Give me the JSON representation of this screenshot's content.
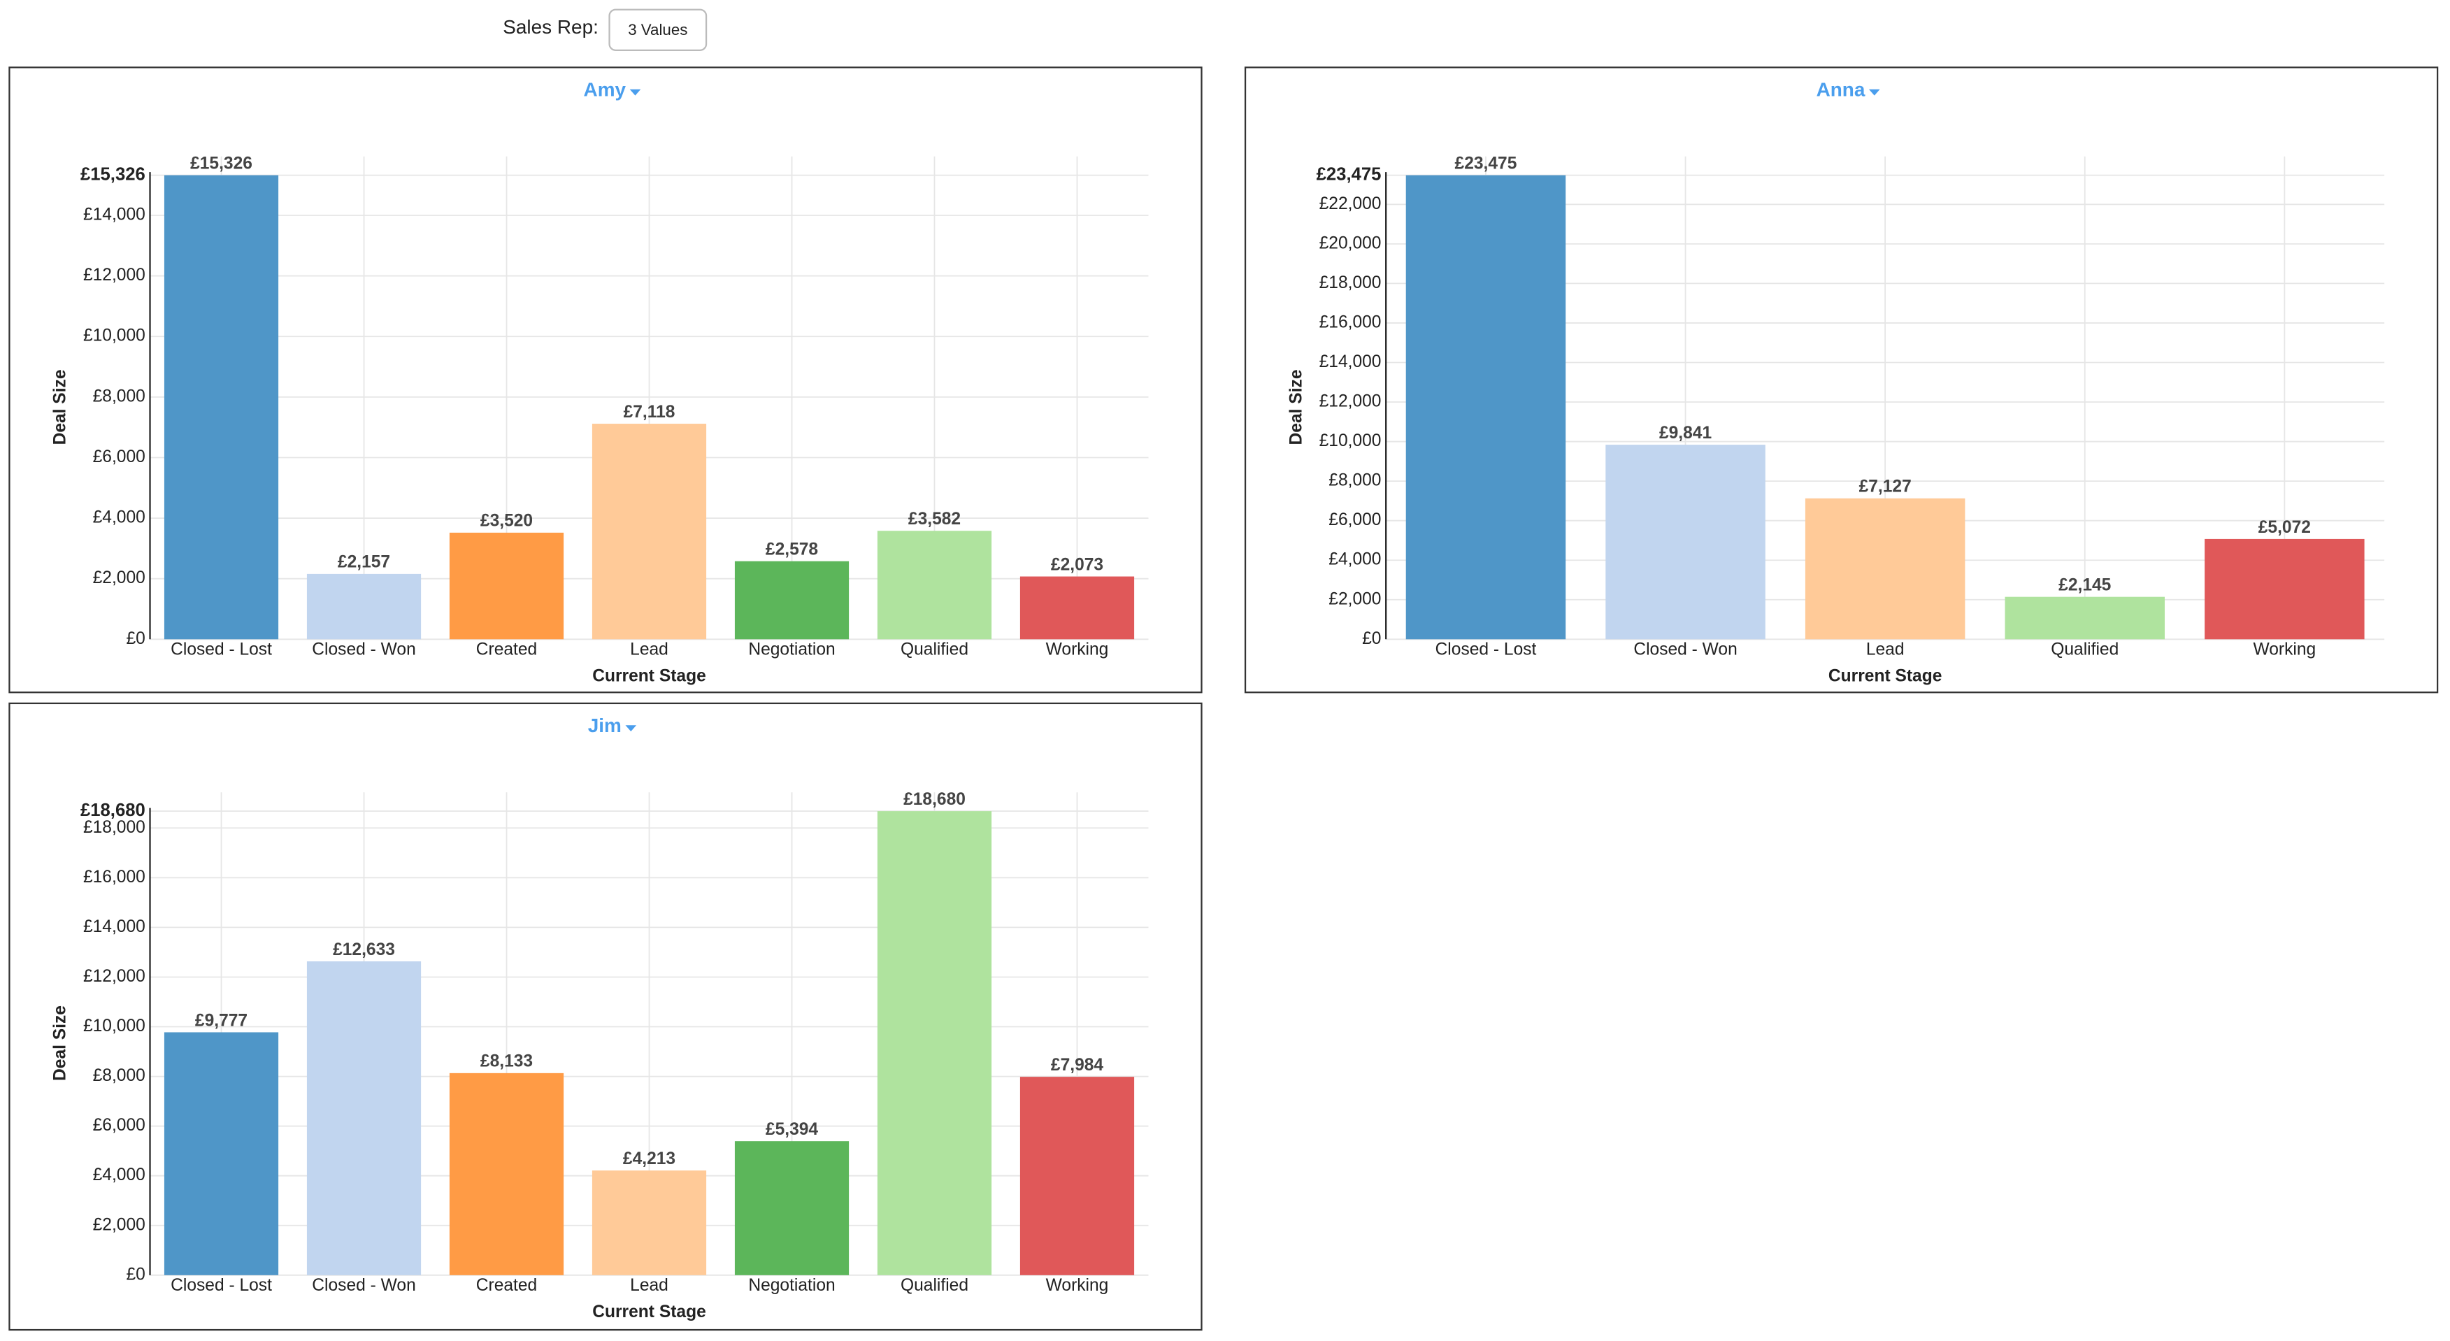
{
  "filter": {
    "label": "Sales Rep:",
    "button": "3 Values"
  },
  "chart_data": [
    {
      "type": "bar",
      "title": "Amy",
      "x_label": "Current Stage",
      "y_label": "Deal Size",
      "categories": [
        "Closed - Lost",
        "Closed - Won",
        "Created",
        "Lead",
        "Negotiation",
        "Qualified",
        "Working"
      ],
      "values": [
        15326,
        2157,
        3520,
        7118,
        2578,
        3582,
        2073
      ],
      "value_labels": [
        "£15,326",
        "£2,157",
        "£3,520",
        "£7,118",
        "£2,578",
        "£3,582",
        "£2,073"
      ],
      "colors": [
        "#4f96c8",
        "#c1d5ef",
        "#ff9b45",
        "#ffca98",
        "#5cb65a",
        "#afe39e",
        "#e05859"
      ],
      "ylim": [
        0,
        15326
      ],
      "yticks": [
        {
          "value": 0,
          "label": "£0"
        },
        {
          "value": 2000,
          "label": "£2,000"
        },
        {
          "value": 4000,
          "label": "£4,000"
        },
        {
          "value": 6000,
          "label": "£6,000"
        },
        {
          "value": 8000,
          "label": "£8,000"
        },
        {
          "value": 10000,
          "label": "£10,000"
        },
        {
          "value": 12000,
          "label": "£12,000"
        },
        {
          "value": 14000,
          "label": "£14,000"
        },
        {
          "value": 15326,
          "label": "£15,326"
        }
      ],
      "grid": true
    },
    {
      "type": "bar",
      "title": "Anna",
      "x_label": "Current Stage",
      "y_label": "Deal Size",
      "categories": [
        "Closed - Lost",
        "Closed - Won",
        "Lead",
        "Qualified",
        "Working"
      ],
      "values": [
        23475,
        9841,
        7127,
        2145,
        5072
      ],
      "value_labels": [
        "£23,475",
        "£9,841",
        "£7,127",
        "£2,145",
        "£5,072"
      ],
      "colors": [
        "#4f96c8",
        "#c1d5ef",
        "#ffca98",
        "#afe39e",
        "#e05859"
      ],
      "ylim": [
        0,
        23475
      ],
      "yticks": [
        {
          "value": 0,
          "label": "£0"
        },
        {
          "value": 2000,
          "label": "£2,000"
        },
        {
          "value": 4000,
          "label": "£4,000"
        },
        {
          "value": 6000,
          "label": "£6,000"
        },
        {
          "value": 8000,
          "label": "£8,000"
        },
        {
          "value": 10000,
          "label": "£10,000"
        },
        {
          "value": 12000,
          "label": "£12,000"
        },
        {
          "value": 14000,
          "label": "£14,000"
        },
        {
          "value": 16000,
          "label": "£16,000"
        },
        {
          "value": 18000,
          "label": "£18,000"
        },
        {
          "value": 20000,
          "label": "£20,000"
        },
        {
          "value": 22000,
          "label": "£22,000"
        },
        {
          "value": 23475,
          "label": "£23,475"
        }
      ],
      "grid": true
    },
    {
      "type": "bar",
      "title": "Jim",
      "x_label": "Current Stage",
      "y_label": "Deal Size",
      "categories": [
        "Closed - Lost",
        "Closed - Won",
        "Created",
        "Lead",
        "Negotiation",
        "Qualified",
        "Working"
      ],
      "values": [
        9777,
        12633,
        8133,
        4213,
        5394,
        18680,
        7984
      ],
      "value_labels": [
        "£9,777",
        "£12,633",
        "£8,133",
        "£4,213",
        "£5,394",
        "£18,680",
        "£7,984"
      ],
      "colors": [
        "#4f96c8",
        "#c1d5ef",
        "#ff9b45",
        "#ffca98",
        "#5cb65a",
        "#afe39e",
        "#e05859"
      ],
      "ylim": [
        0,
        18680
      ],
      "yticks": [
        {
          "value": 0,
          "label": "£0"
        },
        {
          "value": 2000,
          "label": "£2,000"
        },
        {
          "value": 4000,
          "label": "£4,000"
        },
        {
          "value": 6000,
          "label": "£6,000"
        },
        {
          "value": 8000,
          "label": "£8,000"
        },
        {
          "value": 10000,
          "label": "£10,000"
        },
        {
          "value": 12000,
          "label": "£12,000"
        },
        {
          "value": 14000,
          "label": "£14,000"
        },
        {
          "value": 16000,
          "label": "£16,000"
        },
        {
          "value": 18000,
          "label": "£18,000"
        },
        {
          "value": 18680,
          "label": "£18,680"
        }
      ],
      "grid": true
    }
  ]
}
